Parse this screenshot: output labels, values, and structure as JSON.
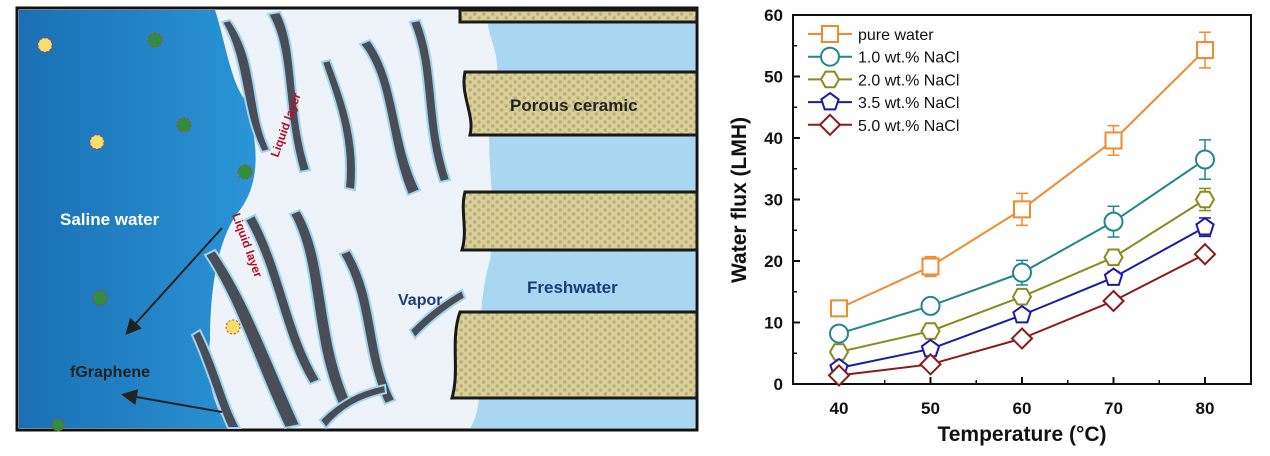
{
  "diagram": {
    "labels": {
      "saline_water": "Saline water",
      "liquid_layer_top": "Liquid layer",
      "liquid_layer_bottom": "Liquid layer",
      "porous_ceramic": "Porous ceramic",
      "vapor": "Vapor",
      "freshwater": "Freshwater",
      "fgraphene": "fGraphene"
    },
    "colors": {
      "saline": "#1f7fc4",
      "ceramic": "#d8cf9a",
      "freshwater": "#a9d6f0",
      "fiber": "#4a4d55"
    }
  },
  "chart_data": {
    "type": "line",
    "xlabel": "Temperature (°C)",
    "ylabel": "Water flux (LMH)",
    "x": [
      40,
      50,
      60,
      70,
      80
    ],
    "xticks": [
      "40",
      "50",
      "60",
      "70",
      "80"
    ],
    "yticks": [
      "0",
      "10",
      "20",
      "30",
      "40",
      "50",
      "60"
    ],
    "xlim": [
      35,
      85
    ],
    "ylim": [
      0,
      60
    ],
    "legend_position": "top-left",
    "grid": false,
    "series": [
      {
        "name": "pure water",
        "color": "#f28a2e",
        "marker": "square",
        "values": [
          12.3,
          19.1,
          28.4,
          39.6,
          54.3
        ],
        "errors": [
          1.0,
          1.6,
          2.6,
          2.4,
          2.9
        ]
      },
      {
        "name": "1.0 wt.% NaCl",
        "color": "#21878a",
        "marker": "circle",
        "values": [
          8.2,
          12.7,
          18.1,
          26.4,
          36.5
        ],
        "errors": [
          0.6,
          0.8,
          2.0,
          2.5,
          3.2
        ]
      },
      {
        "name": "2.0 wt.% NaCl",
        "color": "#8a8a1e",
        "marker": "hexagon",
        "values": [
          5.2,
          8.6,
          14.2,
          20.6,
          30.0
        ],
        "errors": [
          0.5,
          0.6,
          0.8,
          1.3,
          1.8
        ]
      },
      {
        "name": "3.5 wt.% NaCl",
        "color": "#1a1aa8",
        "marker": "pentagon",
        "values": [
          2.6,
          5.7,
          11.2,
          17.3,
          25.5
        ],
        "errors": [
          0.5,
          0.8,
          0.8,
          1.0,
          1.5
        ]
      },
      {
        "name": "5.0 wt.% NaCl",
        "color": "#8b1a1a",
        "marker": "diamond",
        "values": [
          1.4,
          3.2,
          7.4,
          13.5,
          21.1
        ],
        "errors": [
          0.6,
          0.8,
          0.8,
          0.8,
          0.8
        ]
      }
    ]
  }
}
